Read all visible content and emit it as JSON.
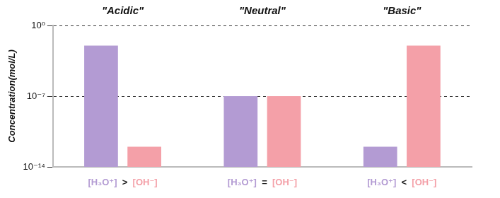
{
  "chart_data": {
    "type": "bar",
    "categories": [
      "\"Acidic\"",
      "\"Neutral\"",
      "\"Basic\""
    ],
    "series": [
      {
        "name": "[H₃O⁺]",
        "color": "#b39bd3",
        "values": [
          0.01,
          1e-07,
          1e-12
        ]
      },
      {
        "name": "[OH⁻]",
        "color": "#f4a0a8",
        "values": [
          1e-12,
          1e-07,
          0.01
        ]
      }
    ],
    "relations": [
      ">",
      "=",
      "<"
    ],
    "y_label": "Concentration(mol/L)",
    "ylim": [
      1e-14,
      1
    ],
    "yticks": [
      {
        "value": 1,
        "label": "10⁰"
      },
      {
        "value": 1e-07,
        "label": "10⁻⁷"
      },
      {
        "value": 1e-14,
        "label": "10⁻¹⁴"
      }
    ],
    "log": "y",
    "grid": true
  }
}
